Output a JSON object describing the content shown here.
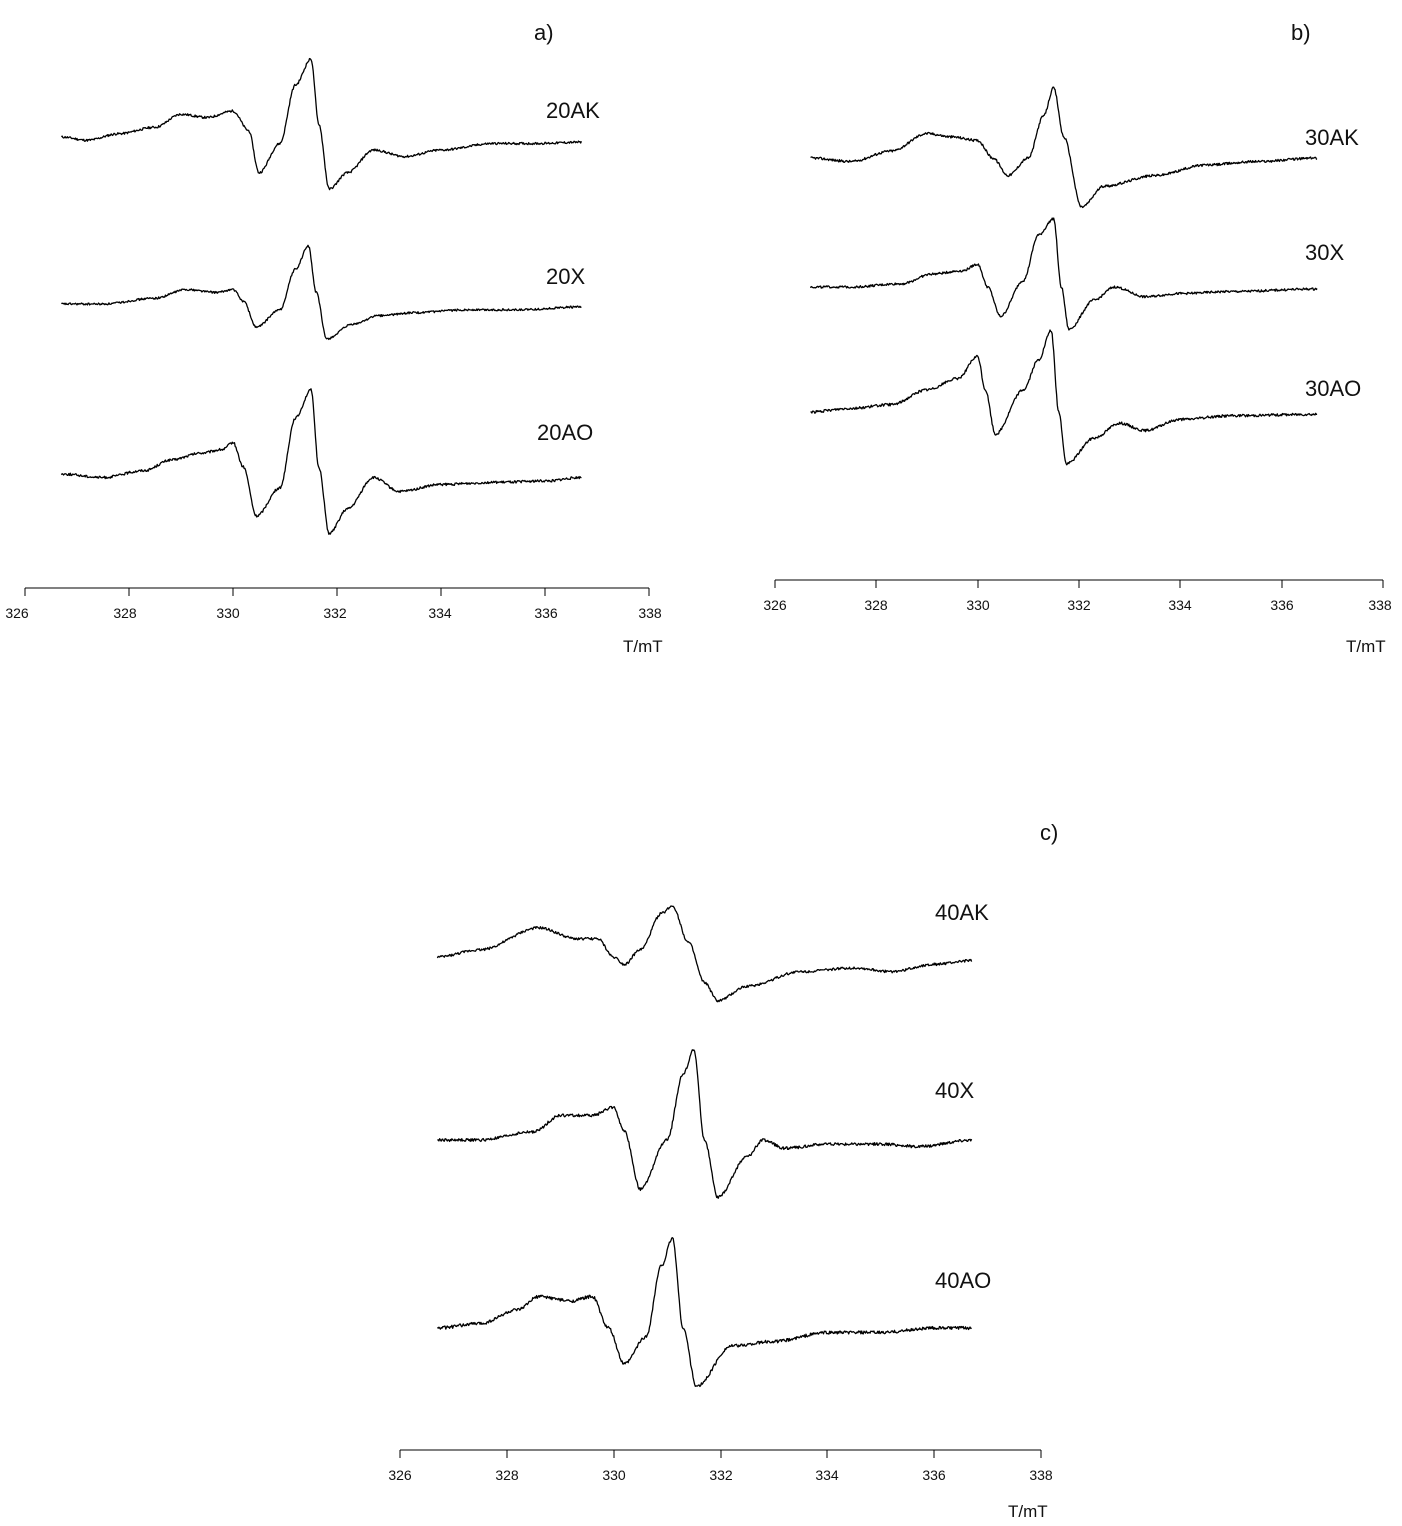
{
  "chart_data": [
    {
      "type": "line",
      "panel_label": "a)",
      "xlabel": "T/mT",
      "xlim": [
        326,
        338
      ],
      "x_ticks": [
        "326",
        "328",
        "330",
        "332",
        "334",
        "336",
        "338"
      ],
      "series": [
        {
          "name": "20AK",
          "peak_max_x": 331.5,
          "peak_min_x": 331.85,
          "points": [
            [
              326.7,
              0.0
            ],
            [
              327.2,
              -0.05
            ],
            [
              327.8,
              0.05
            ],
            [
              328.5,
              0.15
            ],
            [
              329.0,
              0.35
            ],
            [
              329.5,
              0.3
            ],
            [
              330.0,
              0.4
            ],
            [
              330.3,
              0.1
            ],
            [
              330.5,
              -0.55
            ],
            [
              330.9,
              -0.1
            ],
            [
              331.2,
              0.8
            ],
            [
              331.5,
              1.2
            ],
            [
              331.65,
              0.2
            ],
            [
              331.85,
              -0.8
            ],
            [
              332.2,
              -0.55
            ],
            [
              332.7,
              -0.2
            ],
            [
              333.3,
              -0.3
            ],
            [
              334.0,
              -0.2
            ],
            [
              335.0,
              -0.1
            ],
            [
              335.6,
              -0.1
            ],
            [
              335.8,
              -0.1
            ],
            [
              336.7,
              -0.08
            ]
          ]
        },
        {
          "name": "20X",
          "peak_max_x": 331.45,
          "peak_min_x": 331.8,
          "points": [
            [
              326.7,
              0.0
            ],
            [
              327.5,
              0.0
            ],
            [
              328.5,
              0.1
            ],
            [
              329.1,
              0.25
            ],
            [
              329.7,
              0.2
            ],
            [
              330.0,
              0.25
            ],
            [
              330.2,
              0.05
            ],
            [
              330.45,
              -0.4
            ],
            [
              330.9,
              -0.1
            ],
            [
              331.2,
              0.6
            ],
            [
              331.45,
              1.0
            ],
            [
              331.6,
              0.2
            ],
            [
              331.8,
              -0.6
            ],
            [
              332.3,
              -0.35
            ],
            [
              332.8,
              -0.2
            ],
            [
              333.5,
              -0.15
            ],
            [
              334.5,
              -0.1
            ],
            [
              335.5,
              -0.1
            ],
            [
              336.7,
              -0.05
            ]
          ]
        },
        {
          "name": "20AO",
          "peak_max_x": 331.5,
          "peak_min_x": 331.85,
          "points": [
            [
              326.7,
              0.0
            ],
            [
              327.5,
              -0.05
            ],
            [
              328.3,
              0.05
            ],
            [
              328.8,
              0.2
            ],
            [
              329.4,
              0.3
            ],
            [
              329.8,
              0.35
            ],
            [
              330.0,
              0.45
            ],
            [
              330.2,
              0.1
            ],
            [
              330.45,
              -0.6
            ],
            [
              330.9,
              -0.2
            ],
            [
              331.2,
              0.8
            ],
            [
              331.5,
              1.2
            ],
            [
              331.65,
              0.1
            ],
            [
              331.85,
              -0.85
            ],
            [
              332.2,
              -0.5
            ],
            [
              332.7,
              -0.05
            ],
            [
              333.2,
              -0.25
            ],
            [
              334.0,
              -0.15
            ],
            [
              335.0,
              -0.12
            ],
            [
              336.0,
              -0.1
            ],
            [
              336.7,
              -0.05
            ]
          ]
        }
      ]
    },
    {
      "type": "line",
      "panel_label": "b)",
      "xlabel": "T/mT",
      "xlim": [
        326,
        338
      ],
      "x_ticks": [
        "326",
        "328",
        "330",
        "332",
        "334",
        "336",
        "338"
      ],
      "series": [
        {
          "name": "30AK",
          "peak_max_x": 331.5,
          "peak_min_x": 332.05,
          "points": [
            [
              326.7,
              0.0
            ],
            [
              327.5,
              -0.05
            ],
            [
              328.3,
              0.1
            ],
            [
              329.0,
              0.35
            ],
            [
              329.5,
              0.3
            ],
            [
              330.0,
              0.25
            ],
            [
              330.3,
              0.0
            ],
            [
              330.6,
              -0.25
            ],
            [
              331.0,
              0.0
            ],
            [
              331.3,
              0.6
            ],
            [
              331.5,
              1.0
            ],
            [
              331.7,
              0.3
            ],
            [
              332.05,
              -0.7
            ],
            [
              332.5,
              -0.4
            ],
            [
              333.5,
              -0.25
            ],
            [
              334.5,
              -0.1
            ],
            [
              335.5,
              -0.05
            ],
            [
              336.7,
              0.0
            ]
          ]
        },
        {
          "name": "30X",
          "peak_max_x": 331.5,
          "peak_min_x": 331.8,
          "points": [
            [
              326.7,
              0.0
            ],
            [
              327.5,
              0.0
            ],
            [
              328.5,
              0.05
            ],
            [
              329.1,
              0.2
            ],
            [
              329.7,
              0.25
            ],
            [
              330.0,
              0.35
            ],
            [
              330.2,
              0.0
            ],
            [
              330.45,
              -0.45
            ],
            [
              330.9,
              0.1
            ],
            [
              331.2,
              0.8
            ],
            [
              331.5,
              1.05
            ],
            [
              331.65,
              0.0
            ],
            [
              331.8,
              -0.65
            ],
            [
              332.3,
              -0.2
            ],
            [
              332.7,
              -0.0
            ],
            [
              333.3,
              -0.15
            ],
            [
              334.0,
              -0.1
            ],
            [
              335.0,
              -0.07
            ],
            [
              336.7,
              -0.03
            ]
          ]
        },
        {
          "name": "30AO",
          "peak_max_x": 331.45,
          "peak_min_x": 331.75,
          "points": [
            [
              326.7,
              0.0
            ],
            [
              327.5,
              0.05
            ],
            [
              328.3,
              0.1
            ],
            [
              329.0,
              0.3
            ],
            [
              329.6,
              0.45
            ],
            [
              330.0,
              0.75
            ],
            [
              330.15,
              0.3
            ],
            [
              330.35,
              -0.3
            ],
            [
              330.9,
              0.3
            ],
            [
              331.2,
              0.7
            ],
            [
              331.45,
              1.1
            ],
            [
              331.6,
              0.0
            ],
            [
              331.75,
              -0.7
            ],
            [
              332.3,
              -0.35
            ],
            [
              332.8,
              -0.15
            ],
            [
              333.3,
              -0.25
            ],
            [
              334.0,
              -0.1
            ],
            [
              335.0,
              -0.05
            ],
            [
              336.7,
              -0.03
            ]
          ]
        }
      ]
    },
    {
      "type": "line",
      "panel_label": "c)",
      "xlabel": "T/mT",
      "xlim": [
        326,
        338
      ],
      "x_ticks": [
        "326",
        "328",
        "330",
        "332",
        "334",
        "336",
        "338"
      ],
      "series": [
        {
          "name": "40AK",
          "peak_max_x": 331.1,
          "peak_min_x": 331.95,
          "points": [
            [
              326.7,
              0.0
            ],
            [
              327.5,
              0.1
            ],
            [
              328.6,
              0.4
            ],
            [
              329.3,
              0.25
            ],
            [
              329.7,
              0.25
            ],
            [
              330.0,
              0.0
            ],
            [
              330.2,
              -0.1
            ],
            [
              330.5,
              0.1
            ],
            [
              330.9,
              0.6
            ],
            [
              331.1,
              0.7
            ],
            [
              331.4,
              0.2
            ],
            [
              331.7,
              -0.35
            ],
            [
              331.95,
              -0.6
            ],
            [
              332.5,
              -0.4
            ],
            [
              333.5,
              -0.2
            ],
            [
              334.5,
              -0.15
            ],
            [
              335.2,
              -0.2
            ],
            [
              336.0,
              -0.1
            ],
            [
              336.7,
              -0.05
            ]
          ]
        },
        {
          "name": "40X",
          "peak_max_x": 331.5,
          "peak_min_x": 331.95,
          "points": [
            [
              326.7,
              0.0
            ],
            [
              327.5,
              0.0
            ],
            [
              328.5,
              0.1
            ],
            [
              329.0,
              0.3
            ],
            [
              329.6,
              0.3
            ],
            [
              330.0,
              0.4
            ],
            [
              330.2,
              0.1
            ],
            [
              330.5,
              -0.6
            ],
            [
              331.0,
              0.0
            ],
            [
              331.3,
              0.8
            ],
            [
              331.5,
              1.1
            ],
            [
              331.7,
              0.0
            ],
            [
              331.95,
              -0.7
            ],
            [
              332.5,
              -0.2
            ],
            [
              332.8,
              0.0
            ],
            [
              333.2,
              -0.1
            ],
            [
              334.0,
              -0.05
            ],
            [
              335.0,
              -0.05
            ],
            [
              335.7,
              -0.08
            ],
            [
              336.7,
              0.0
            ]
          ]
        },
        {
          "name": "40AO",
          "peak_max_x": 331.1,
          "peak_min_x": 331.55,
          "points": [
            [
              326.7,
              0.0
            ],
            [
              327.5,
              0.05
            ],
            [
              328.2,
              0.2
            ],
            [
              328.6,
              0.35
            ],
            [
              329.2,
              0.3
            ],
            [
              329.6,
              0.35
            ],
            [
              329.9,
              0.0
            ],
            [
              330.2,
              -0.4
            ],
            [
              330.6,
              -0.1
            ],
            [
              330.9,
              0.7
            ],
            [
              331.1,
              1.0
            ],
            [
              331.3,
              0.0
            ],
            [
              331.55,
              -0.65
            ],
            [
              332.2,
              -0.2
            ],
            [
              333.0,
              -0.15
            ],
            [
              334.0,
              -0.05
            ],
            [
              335.0,
              -0.05
            ],
            [
              336.0,
              0.0
            ],
            [
              336.7,
              0.0
            ]
          ]
        }
      ]
    }
  ]
}
